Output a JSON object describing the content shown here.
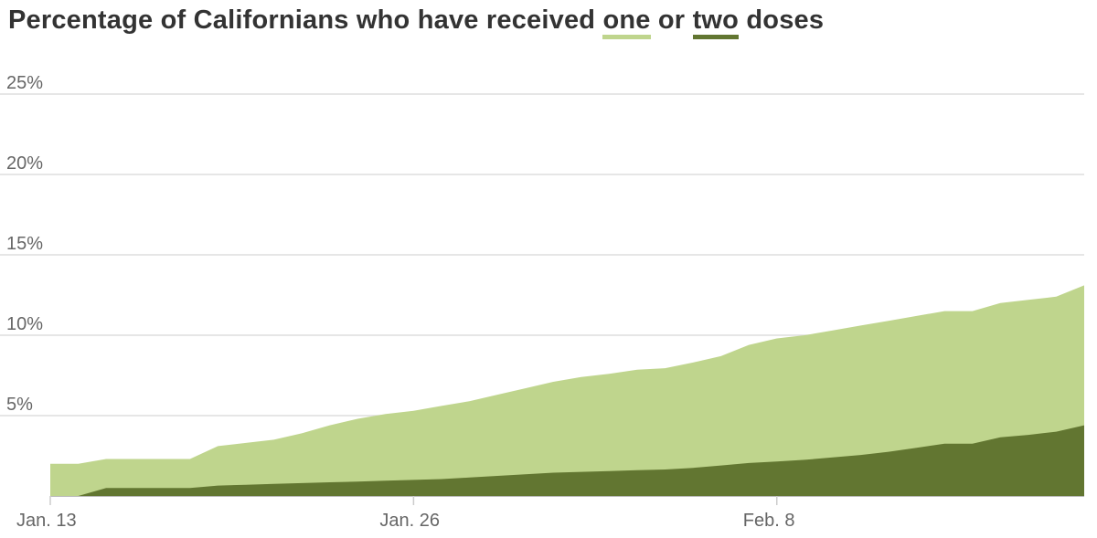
{
  "title": {
    "prefix": "Percentage of Californians who have received",
    "key_one": "one",
    "middle": "or",
    "key_two": "two",
    "suffix": "doses"
  },
  "colors": {
    "one_dose": "#bfd58d",
    "two_doses": "#627631",
    "grid": "#dddddd",
    "text": "#333333",
    "tick": "#666666"
  },
  "chart_data": {
    "type": "area",
    "title": "Percentage of Californians who have received one or two doses",
    "xlabel": "",
    "ylabel": "",
    "x_ticks": [
      {
        "date": "2021-01-13",
        "label": "Jan. 13"
      },
      {
        "date": "2021-01-26",
        "label": "Jan. 26"
      },
      {
        "date": "2021-02-08",
        "label": "Feb. 8"
      }
    ],
    "y_ticks": [
      {
        "value": 5,
        "label": "5%"
      },
      {
        "value": 10,
        "label": "10%"
      },
      {
        "value": 15,
        "label": "15%"
      },
      {
        "value": 20,
        "label": "20%"
      },
      {
        "value": 25,
        "label": "25%"
      }
    ],
    "ylim": [
      0,
      25
    ],
    "xlim": [
      "2021-01-13",
      "2021-02-19"
    ],
    "grid": true,
    "stacking": "overlapping",
    "series": [
      {
        "name": "one",
        "color": "#bfd58d",
        "points": [
          {
            "x": "2021-01-13",
            "y": 2.0
          },
          {
            "x": "2021-01-14",
            "y": 2.0
          },
          {
            "x": "2021-01-15",
            "y": 2.3
          },
          {
            "x": "2021-01-16",
            "y": 2.3
          },
          {
            "x": "2021-01-17",
            "y": 2.3
          },
          {
            "x": "2021-01-18",
            "y": 2.3
          },
          {
            "x": "2021-01-19",
            "y": 3.1
          },
          {
            "x": "2021-01-20",
            "y": 3.3
          },
          {
            "x": "2021-01-21",
            "y": 3.5
          },
          {
            "x": "2021-01-22",
            "y": 3.9
          },
          {
            "x": "2021-01-23",
            "y": 4.4
          },
          {
            "x": "2021-01-24",
            "y": 4.8
          },
          {
            "x": "2021-01-25",
            "y": 5.1
          },
          {
            "x": "2021-01-26",
            "y": 5.3
          },
          {
            "x": "2021-01-27",
            "y": 5.6
          },
          {
            "x": "2021-01-28",
            "y": 5.9
          },
          {
            "x": "2021-01-29",
            "y": 6.3
          },
          {
            "x": "2021-01-30",
            "y": 6.7
          },
          {
            "x": "2021-01-31",
            "y": 7.1
          },
          {
            "x": "2021-02-01",
            "y": 7.4
          },
          {
            "x": "2021-02-02",
            "y": 7.6
          },
          {
            "x": "2021-02-03",
            "y": 7.85
          },
          {
            "x": "2021-02-04",
            "y": 7.95
          },
          {
            "x": "2021-02-05",
            "y": 8.3
          },
          {
            "x": "2021-02-06",
            "y": 8.7
          },
          {
            "x": "2021-02-07",
            "y": 9.4
          },
          {
            "x": "2021-02-08",
            "y": 9.8
          },
          {
            "x": "2021-02-09",
            "y": 10.0
          },
          {
            "x": "2021-02-10",
            "y": 10.3
          },
          {
            "x": "2021-02-11",
            "y": 10.6
          },
          {
            "x": "2021-02-12",
            "y": 10.9
          },
          {
            "x": "2021-02-13",
            "y": 11.2
          },
          {
            "x": "2021-02-14",
            "y": 11.5
          },
          {
            "x": "2021-02-15",
            "y": 11.5
          },
          {
            "x": "2021-02-16",
            "y": 12.0
          },
          {
            "x": "2021-02-17",
            "y": 12.2
          },
          {
            "x": "2021-02-18",
            "y": 12.4
          },
          {
            "x": "2021-02-19",
            "y": 13.1
          }
        ]
      },
      {
        "name": "two",
        "color": "#627631",
        "points": [
          {
            "x": "2021-01-13",
            "y": 0.0
          },
          {
            "x": "2021-01-14",
            "y": 0.0
          },
          {
            "x": "2021-01-15",
            "y": 0.5
          },
          {
            "x": "2021-01-16",
            "y": 0.5
          },
          {
            "x": "2021-01-17",
            "y": 0.5
          },
          {
            "x": "2021-01-18",
            "y": 0.5
          },
          {
            "x": "2021-01-19",
            "y": 0.65
          },
          {
            "x": "2021-01-20",
            "y": 0.7
          },
          {
            "x": "2021-01-21",
            "y": 0.75
          },
          {
            "x": "2021-01-22",
            "y": 0.8
          },
          {
            "x": "2021-01-23",
            "y": 0.85
          },
          {
            "x": "2021-01-24",
            "y": 0.9
          },
          {
            "x": "2021-01-25",
            "y": 0.95
          },
          {
            "x": "2021-01-26",
            "y": 1.0
          },
          {
            "x": "2021-01-27",
            "y": 1.05
          },
          {
            "x": "2021-01-28",
            "y": 1.15
          },
          {
            "x": "2021-01-29",
            "y": 1.25
          },
          {
            "x": "2021-01-30",
            "y": 1.35
          },
          {
            "x": "2021-01-31",
            "y": 1.45
          },
          {
            "x": "2021-02-01",
            "y": 1.5
          },
          {
            "x": "2021-02-02",
            "y": 1.55
          },
          {
            "x": "2021-02-03",
            "y": 1.6
          },
          {
            "x": "2021-02-04",
            "y": 1.65
          },
          {
            "x": "2021-02-05",
            "y": 1.75
          },
          {
            "x": "2021-02-06",
            "y": 1.9
          },
          {
            "x": "2021-02-07",
            "y": 2.05
          },
          {
            "x": "2021-02-08",
            "y": 2.15
          },
          {
            "x": "2021-02-09",
            "y": 2.25
          },
          {
            "x": "2021-02-10",
            "y": 2.4
          },
          {
            "x": "2021-02-11",
            "y": 2.55
          },
          {
            "x": "2021-02-12",
            "y": 2.75
          },
          {
            "x": "2021-02-13",
            "y": 3.0
          },
          {
            "x": "2021-02-14",
            "y": 3.25
          },
          {
            "x": "2021-02-15",
            "y": 3.25
          },
          {
            "x": "2021-02-16",
            "y": 3.65
          },
          {
            "x": "2021-02-17",
            "y": 3.8
          },
          {
            "x": "2021-02-18",
            "y": 4.0
          },
          {
            "x": "2021-02-19",
            "y": 4.4
          }
        ]
      }
    ]
  }
}
